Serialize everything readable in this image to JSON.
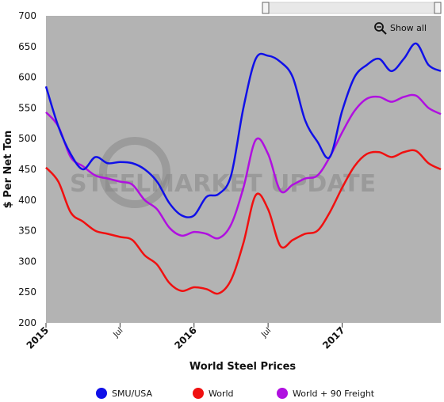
{
  "chart_data": {
    "type": "line",
    "xlabel": "World Steel Prices",
    "ylabel": "$ Per Net Ton",
    "ylim": [
      200,
      700
    ],
    "yticks": [
      200,
      250,
      300,
      350,
      400,
      450,
      500,
      550,
      600,
      650,
      700
    ],
    "xlim": [
      "2015-01",
      "2017-09"
    ],
    "xticks": [
      {
        "label": "2015",
        "x": "2015-01",
        "bold": true
      },
      {
        "label": "Jul",
        "x": "2015-07",
        "bold": false
      },
      {
        "label": "2016",
        "x": "2016-01",
        "bold": true
      },
      {
        "label": "Jul",
        "x": "2016-07",
        "bold": false
      },
      {
        "label": "2017",
        "x": "2017-01",
        "bold": true
      }
    ],
    "grid": false,
    "legend_position": "bottom",
    "background": "#b3b3b3",
    "series": [
      {
        "name": "SMU/USA",
        "color": "#1010e8",
        "x": [
          "2015-01",
          "2015-02",
          "2015-03",
          "2015-04",
          "2015-05",
          "2015-06",
          "2015-07",
          "2015-08",
          "2015-09",
          "2015-10",
          "2015-11",
          "2015-12",
          "2016-01",
          "2016-02",
          "2016-03",
          "2016-04",
          "2016-05",
          "2016-06",
          "2016-07",
          "2016-08",
          "2016-09",
          "2016-10",
          "2016-11",
          "2016-12",
          "2017-01",
          "2017-02",
          "2017-03",
          "2017-04",
          "2017-05",
          "2017-06",
          "2017-07",
          "2017-08",
          "2017-09"
        ],
        "values": [
          585,
          520,
          475,
          450,
          470,
          460,
          462,
          460,
          450,
          430,
          395,
          375,
          375,
          405,
          410,
          440,
          550,
          630,
          635,
          625,
          600,
          530,
          495,
          470,
          545,
          600,
          620,
          630,
          610,
          630,
          655,
          620,
          610
        ]
      },
      {
        "name": "World",
        "color": "#f01010",
        "x": [
          "2015-01",
          "2015-02",
          "2015-03",
          "2015-04",
          "2015-05",
          "2015-06",
          "2015-07",
          "2015-08",
          "2015-09",
          "2015-10",
          "2015-11",
          "2015-12",
          "2016-01",
          "2016-02",
          "2016-03",
          "2016-04",
          "2016-05",
          "2016-06",
          "2016-07",
          "2016-08",
          "2016-09",
          "2016-10",
          "2016-11",
          "2016-12",
          "2017-01",
          "2017-02",
          "2017-03",
          "2017-04",
          "2017-05",
          "2017-06",
          "2017-07",
          "2017-08",
          "2017-09"
        ],
        "values": [
          453,
          430,
          380,
          365,
          350,
          345,
          340,
          335,
          310,
          295,
          265,
          252,
          258,
          255,
          248,
          270,
          330,
          408,
          385,
          325,
          335,
          345,
          350,
          380,
          420,
          455,
          475,
          478,
          470,
          478,
          480,
          460,
          450
        ]
      },
      {
        "name": "World + 90 Freight",
        "color": "#b010e0",
        "x": [
          "2015-01",
          "2015-02",
          "2015-03",
          "2015-04",
          "2015-05",
          "2015-06",
          "2015-07",
          "2015-08",
          "2015-09",
          "2015-10",
          "2015-11",
          "2015-12",
          "2016-01",
          "2016-02",
          "2016-03",
          "2016-04",
          "2016-05",
          "2016-06",
          "2016-07",
          "2016-08",
          "2016-09",
          "2016-10",
          "2016-11",
          "2016-12",
          "2017-01",
          "2017-02",
          "2017-03",
          "2017-04",
          "2017-05",
          "2017-06",
          "2017-07",
          "2017-08",
          "2017-09"
        ],
        "values": [
          543,
          520,
          470,
          455,
          440,
          435,
          430,
          425,
          400,
          385,
          355,
          342,
          348,
          345,
          338,
          360,
          420,
          498,
          475,
          415,
          425,
          435,
          440,
          470,
          510,
          545,
          565,
          568,
          560,
          568,
          570,
          550,
          540
        ]
      }
    ]
  },
  "toolbar": {
    "show_all_label": "Show all",
    "zoom_icon": "zoom-out-icon"
  },
  "watermark": {
    "text": "STEELMARKET UPDATE"
  }
}
